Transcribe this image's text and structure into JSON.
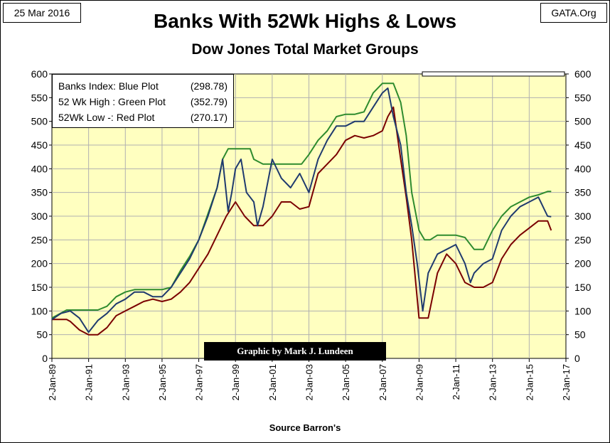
{
  "header": {
    "date": "25 Mar 2016",
    "site": "GATA.Org",
    "title": "Banks With 52Wk Highs & Lows",
    "subtitle": "Dow Jones Total Market Groups"
  },
  "footer": {
    "source": "Source Barron's",
    "credit": "Graphic by Mark J. Lundeen"
  },
  "legend": [
    {
      "label": "Banks Index: Blue Plot",
      "value": "(298.78)"
    },
    {
      "label": "52 Wk High : Green Plot",
      "value": "(352.79)"
    },
    {
      "label": "52Wk Low -: Red Plot",
      "value": "(270.17)"
    }
  ],
  "colors": {
    "plot_bg": "#ffffc0",
    "grid": "#b0b0b0",
    "blue": "#1f3a6e",
    "green": "#2e8b2e",
    "red": "#7a0000"
  },
  "chart_data": {
    "type": "line",
    "ylim": [
      0,
      600
    ],
    "yticks": [
      0,
      50,
      100,
      150,
      200,
      250,
      300,
      350,
      400,
      450,
      500,
      550,
      600
    ],
    "xlim": [
      1989.0,
      2017.0
    ],
    "xtick_labels": [
      "2-Jan-89",
      "2-Jan-91",
      "2-Jan-93",
      "2-Jan-95",
      "2-Jan-97",
      "2-Jan-99",
      "2-Jan-01",
      "2-Jan-03",
      "2-Jan-05",
      "2-Jan-07",
      "2-Jan-09",
      "2-Jan-11",
      "2-Jan-13",
      "2-Jan-15",
      "2-Jan-17"
    ],
    "grid": true,
    "series": [
      {
        "name": "Banks Index",
        "color": "#1f3a6e",
        "x": [
          1989.0,
          1989.5,
          1990.0,
          1990.5,
          1991.0,
          1991.5,
          1992.0,
          1992.5,
          1993.0,
          1993.5,
          1994.0,
          1994.5,
          1995.0,
          1995.5,
          1996.0,
          1996.5,
          1997.0,
          1997.5,
          1998.0,
          1998.3,
          1998.6,
          1998.8,
          1999.0,
          1999.3,
          1999.6,
          2000.0,
          2000.2,
          2000.5,
          2001.0,
          2001.5,
          2002.0,
          2002.5,
          2003.0,
          2003.5,
          2004.0,
          2004.5,
          2005.0,
          2005.5,
          2006.0,
          2006.5,
          2007.0,
          2007.3,
          2007.6,
          2008.0,
          2008.3,
          2008.6,
          2008.9,
          2009.2,
          2009.5,
          2010.0,
          2010.5,
          2011.0,
          2011.5,
          2011.8,
          2012.0,
          2012.5,
          2013.0,
          2013.5,
          2014.0,
          2014.5,
          2015.0,
          2015.5,
          2016.0,
          2016.2
        ],
        "y": [
          82,
          95,
          100,
          85,
          55,
          80,
          95,
          115,
          125,
          140,
          140,
          130,
          130,
          150,
          180,
          210,
          250,
          300,
          360,
          420,
          310,
          350,
          400,
          420,
          350,
          330,
          280,
          320,
          420,
          380,
          360,
          390,
          350,
          420,
          460,
          490,
          490,
          500,
          500,
          530,
          560,
          570,
          510,
          450,
          350,
          280,
          200,
          100,
          180,
          220,
          230,
          240,
          200,
          160,
          180,
          200,
          210,
          270,
          300,
          320,
          330,
          340,
          300,
          299
        ]
      },
      {
        "name": "52 Wk High",
        "color": "#2e8b2e",
        "x": [
          1989.0,
          1989.8,
          1990.0,
          1990.6,
          1991.0,
          1991.5,
          1992.0,
          1992.5,
          1993.0,
          1993.5,
          1994.0,
          1995.0,
          1995.5,
          1996.0,
          1996.5,
          1997.0,
          1997.5,
          1998.0,
          1998.3,
          1998.6,
          1999.0,
          1999.8,
          2000.0,
          2000.5,
          2001.0,
          2001.5,
          2002.0,
          2002.6,
          2003.0,
          2003.5,
          2004.0,
          2004.5,
          2005.0,
          2005.5,
          2006.0,
          2006.5,
          2007.0,
          2007.2,
          2007.6,
          2008.0,
          2008.3,
          2008.6,
          2009.0,
          2009.3,
          2009.6,
          2010.0,
          2010.5,
          2011.0,
          2011.5,
          2012.0,
          2012.5,
          2013.0,
          2013.5,
          2014.0,
          2014.5,
          2015.0,
          2015.5,
          2016.0,
          2016.2
        ],
        "y": [
          85,
          102,
          102,
          102,
          102,
          102,
          110,
          130,
          140,
          145,
          145,
          145,
          150,
          185,
          215,
          250,
          305,
          360,
          420,
          442,
          442,
          442,
          420,
          410,
          410,
          410,
          410,
          410,
          430,
          460,
          480,
          510,
          515,
          515,
          520,
          560,
          580,
          580,
          580,
          540,
          470,
          350,
          270,
          250,
          250,
          260,
          260,
          260,
          255,
          230,
          230,
          270,
          300,
          320,
          330,
          340,
          345,
          352,
          352
        ]
      },
      {
        "name": "52Wk Low",
        "color": "#7a0000",
        "x": [
          1989.0,
          1989.8,
          1990.0,
          1990.5,
          1991.0,
          1991.5,
          1992.0,
          1992.5,
          1993.0,
          1993.5,
          1994.0,
          1994.5,
          1995.0,
          1995.5,
          1996.0,
          1996.5,
          1997.0,
          1997.5,
          1998.0,
          1998.5,
          1999.0,
          1999.5,
          2000.0,
          2000.5,
          2001.0,
          2001.5,
          2002.0,
          2002.5,
          2003.0,
          2003.5,
          2004.0,
          2004.5,
          2005.0,
          2005.5,
          2006.0,
          2006.5,
          2007.0,
          2007.3,
          2007.6,
          2008.0,
          2008.3,
          2008.6,
          2009.0,
          2009.5,
          2010.0,
          2010.5,
          2011.0,
          2011.5,
          2012.0,
          2012.5,
          2013.0,
          2013.5,
          2014.0,
          2014.5,
          2015.0,
          2015.5,
          2016.0,
          2016.2
        ],
        "y": [
          82,
          82,
          78,
          60,
          50,
          50,
          65,
          90,
          100,
          110,
          120,
          125,
          120,
          125,
          140,
          160,
          190,
          220,
          260,
          300,
          330,
          300,
          280,
          280,
          300,
          330,
          330,
          315,
          320,
          390,
          410,
          430,
          460,
          470,
          465,
          470,
          480,
          510,
          530,
          420,
          340,
          250,
          85,
          85,
          180,
          220,
          200,
          160,
          150,
          150,
          160,
          210,
          240,
          260,
          275,
          290,
          290,
          270
        ]
      }
    ]
  }
}
